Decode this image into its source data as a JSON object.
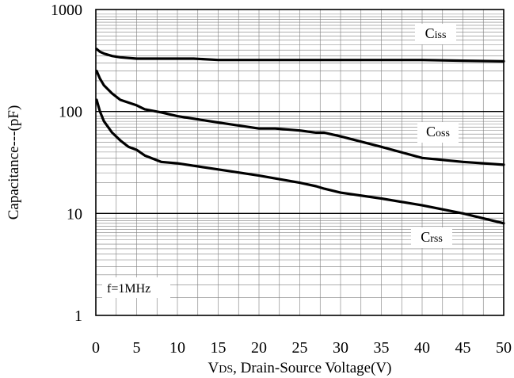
{
  "chart_data": {
    "type": "line",
    "xlabel_prefix": "V",
    "xlabel_sub": "DS",
    "xlabel_suffix": ", Drain-Source Voltage(V)",
    "ylabel": "Capacitance---(pF)",
    "x_ticks": [
      0,
      5,
      10,
      15,
      20,
      25,
      30,
      35,
      40,
      45,
      50
    ],
    "x_tick_labels": [
      "0",
      "5",
      "10",
      "15",
      "20",
      "25",
      "30",
      "35",
      "40",
      "45",
      "50"
    ],
    "y_ticks": [
      1,
      10,
      100,
      1000
    ],
    "y_tick_labels": [
      "1",
      "10",
      "100",
      "1000"
    ],
    "xlim": [
      0,
      50
    ],
    "ylim": [
      1,
      1000
    ],
    "y_scale": "log",
    "grid": true,
    "annotation": "f=1MHz",
    "series": [
      {
        "name": "Ciss",
        "label_first": "C",
        "label_rest": "iss",
        "points": [
          [
            0.1,
            410
          ],
          [
            0.5,
            385
          ],
          [
            1,
            370
          ],
          [
            2,
            350
          ],
          [
            3,
            340
          ],
          [
            5,
            330
          ],
          [
            8,
            330
          ],
          [
            10,
            330
          ],
          [
            12,
            330
          ],
          [
            15,
            320
          ],
          [
            20,
            320
          ],
          [
            30,
            320
          ],
          [
            40,
            320
          ],
          [
            45,
            315
          ],
          [
            50,
            310
          ]
        ]
      },
      {
        "name": "Coss",
        "label_first": "C",
        "label_rest": "oss",
        "points": [
          [
            0.1,
            250
          ],
          [
            0.5,
            210
          ],
          [
            1,
            180
          ],
          [
            2,
            150
          ],
          [
            3,
            130
          ],
          [
            5,
            115
          ],
          [
            6,
            105
          ],
          [
            8,
            98
          ],
          [
            10,
            90
          ],
          [
            15,
            78
          ],
          [
            20,
            68
          ],
          [
            22,
            68
          ],
          [
            25,
            65
          ],
          [
            27,
            62
          ],
          [
            28,
            62
          ],
          [
            30,
            57
          ],
          [
            35,
            45
          ],
          [
            40,
            35
          ],
          [
            45,
            32
          ],
          [
            50,
            30
          ]
        ]
      },
      {
        "name": "Crss",
        "label_first": "C",
        "label_rest": "rss",
        "points": [
          [
            0.1,
            130
          ],
          [
            0.5,
            100
          ],
          [
            1,
            80
          ],
          [
            2,
            62
          ],
          [
            3,
            52
          ],
          [
            4,
            45
          ],
          [
            5,
            42
          ],
          [
            6,
            37
          ],
          [
            8,
            32
          ],
          [
            10,
            31
          ],
          [
            15,
            27
          ],
          [
            20,
            23.5
          ],
          [
            25,
            20
          ],
          [
            27,
            18.5
          ],
          [
            28,
            17.5
          ],
          [
            30,
            16
          ],
          [
            35,
            14
          ],
          [
            40,
            12
          ],
          [
            45,
            10
          ],
          [
            50,
            8
          ]
        ]
      }
    ]
  }
}
